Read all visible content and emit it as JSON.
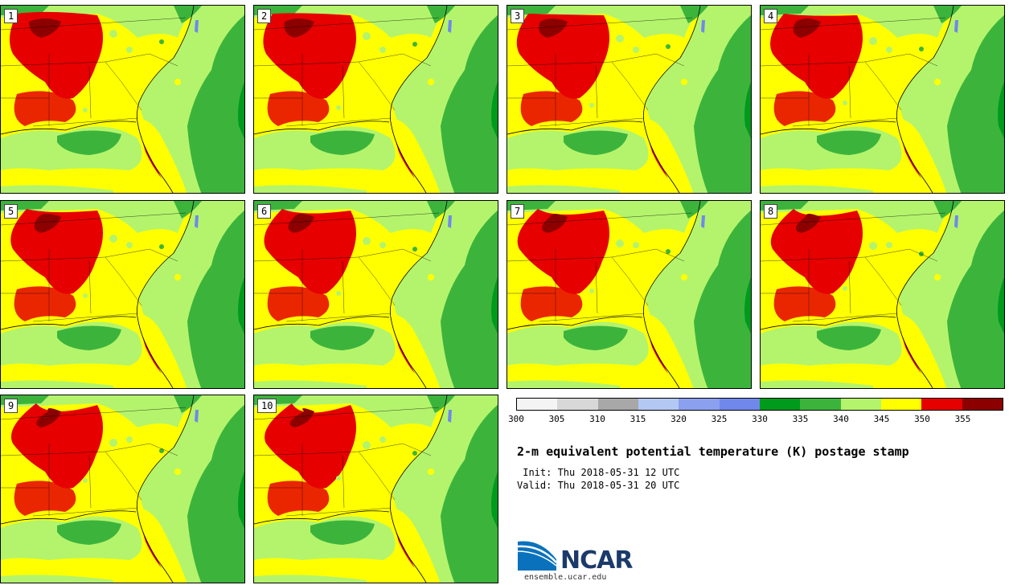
{
  "panels": [
    {
      "label": "1"
    },
    {
      "label": "2"
    },
    {
      "label": "3"
    },
    {
      "label": "4"
    },
    {
      "label": "5"
    },
    {
      "label": "6"
    },
    {
      "label": "7"
    },
    {
      "label": "8"
    },
    {
      "label": "9"
    },
    {
      "label": "10"
    }
  ],
  "colorbar": {
    "colors": [
      "#f4f4f4",
      "#d8d8d8",
      "#a8a8a8",
      "#b4c8f4",
      "#8ca0f0",
      "#7088ec",
      "#009a1c",
      "#3cb43c",
      "#b4f46c",
      "#ffff00",
      "#e60000",
      "#8c0000"
    ],
    "ticks": [
      "300",
      "305",
      "310",
      "315",
      "320",
      "325",
      "330",
      "335",
      "340",
      "345",
      "350",
      "355"
    ]
  },
  "title": "2-m equivalent potential temperature (K) postage stamp",
  "init": " Init: Thu 2018-05-31 12 UTC",
  "valid": "Valid: Thu 2018-05-31 20 UTC",
  "logo": {
    "name": "NCAR",
    "url": "ensemble.ucar.edu"
  }
}
